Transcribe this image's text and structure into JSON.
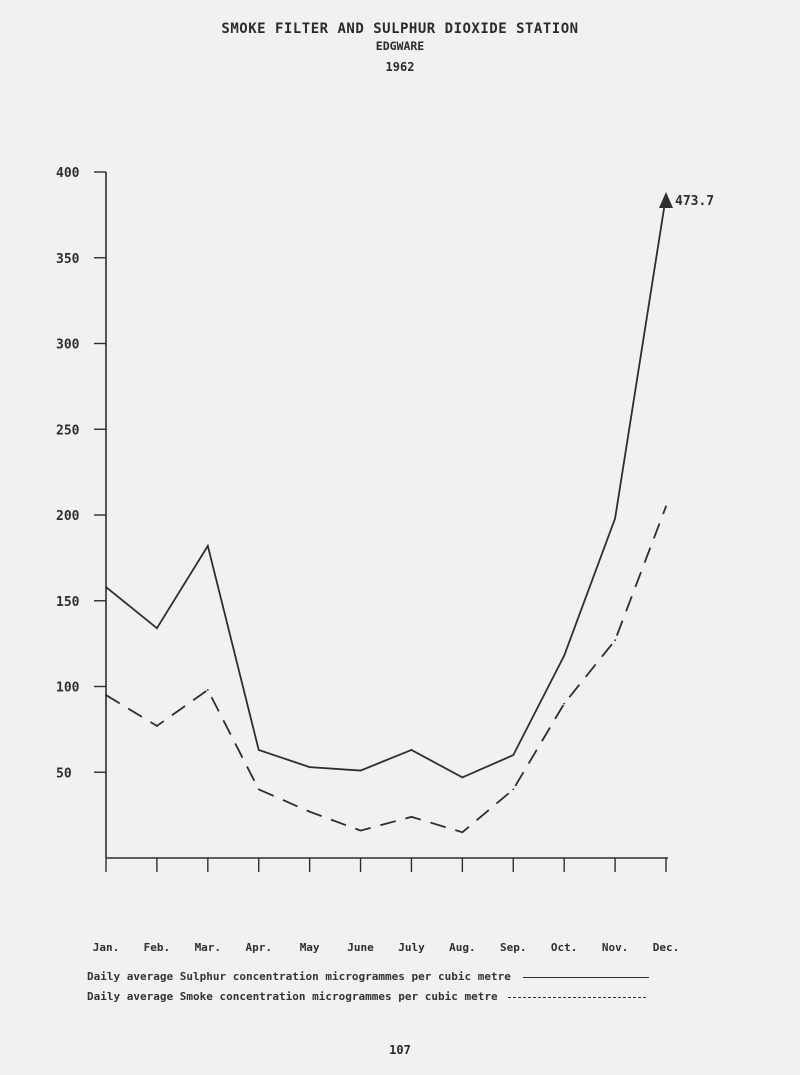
{
  "header": {
    "title": "SMOKE FILTER AND SULPHUR DIOXIDE STATION",
    "subtitle": "EDGWARE",
    "year": "1962"
  },
  "legend": {
    "sulphur_label": "Daily average Sulphur concentration microgrammes per cubic metre",
    "smoke_label": "Daily average Smoke concentration microgrammes per cubic metre"
  },
  "page_number": "107",
  "colors": {
    "ink": "#2e2e2e",
    "paper": "#f3f1ef"
  },
  "chart_data": {
    "type": "line",
    "title": "SMOKE FILTER AND SULPHUR DIOXIDE STATION",
    "categories": [
      "Jan.",
      "Feb.",
      "Mar.",
      "Apr.",
      "May",
      "June",
      "July",
      "Aug.",
      "Sep.",
      "Oct.",
      "Nov.",
      "Dec."
    ],
    "yticks": [
      "50",
      "100",
      "150",
      "200",
      "250",
      "300",
      "350",
      "400"
    ],
    "ylim": [
      0,
      400
    ],
    "grid": false,
    "series": [
      {
        "name": "Daily average Sulphur concentration microgrammes per cubic metre",
        "style": "solid",
        "values": [
          158,
          134,
          182,
          63,
          53,
          51,
          63,
          47,
          60,
          118,
          198,
          473.7
        ]
      },
      {
        "name": "Daily average Smoke concentration microgrammes per cubic metre",
        "style": "dashed",
        "values": [
          95,
          77,
          98,
          40,
          27,
          16,
          24,
          15,
          40,
          90,
          127,
          205
        ]
      }
    ],
    "annotations": [
      {
        "text": "473.7",
        "series": 0,
        "category": "Dec.",
        "note": "value exceeds axis; arrow"
      }
    ]
  }
}
